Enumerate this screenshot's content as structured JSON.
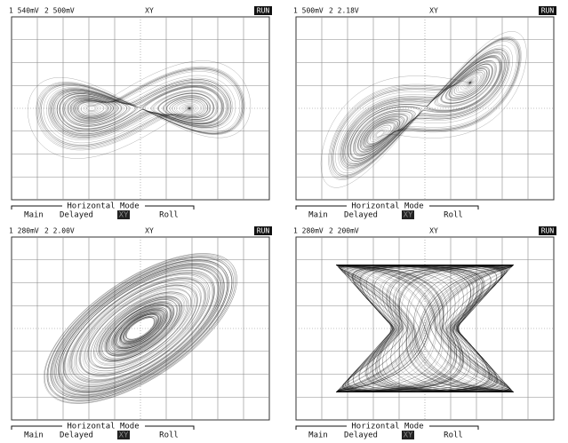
{
  "panels": [
    {
      "channel1": "1 540mV",
      "channel2": "2 500mV",
      "mode": "XY",
      "status": "RUN",
      "menu": {
        "title": "Horizontal Mode",
        "options": [
          "Main",
          "Delayed",
          "XY",
          "Roll"
        ]
      }
    },
    {
      "channel1": "1 500mV",
      "channel2": "2 2.18V",
      "mode": "XY",
      "status": "RUN",
      "menu": {
        "title": "Horizontal Mode",
        "options": [
          "Main",
          "Delayed",
          "XY",
          "Roll"
        ]
      }
    },
    {
      "channel1": "1 280mV",
      "channel2": "2 2.00V",
      "mode": "XY",
      "status": "RUN",
      "menu": {
        "title": "Horizontal Mode",
        "options": [
          "Main",
          "Delayed",
          "XY",
          "Roll"
        ]
      }
    },
    {
      "channel1": "1 280mV",
      "channel2": "2 200mV",
      "mode": "XY",
      "status": "RUN",
      "menu": {
        "title": "Horizontal Mode",
        "options": [
          "Main",
          "Delayed",
          "XY",
          "Roll"
        ]
      }
    }
  ]
}
